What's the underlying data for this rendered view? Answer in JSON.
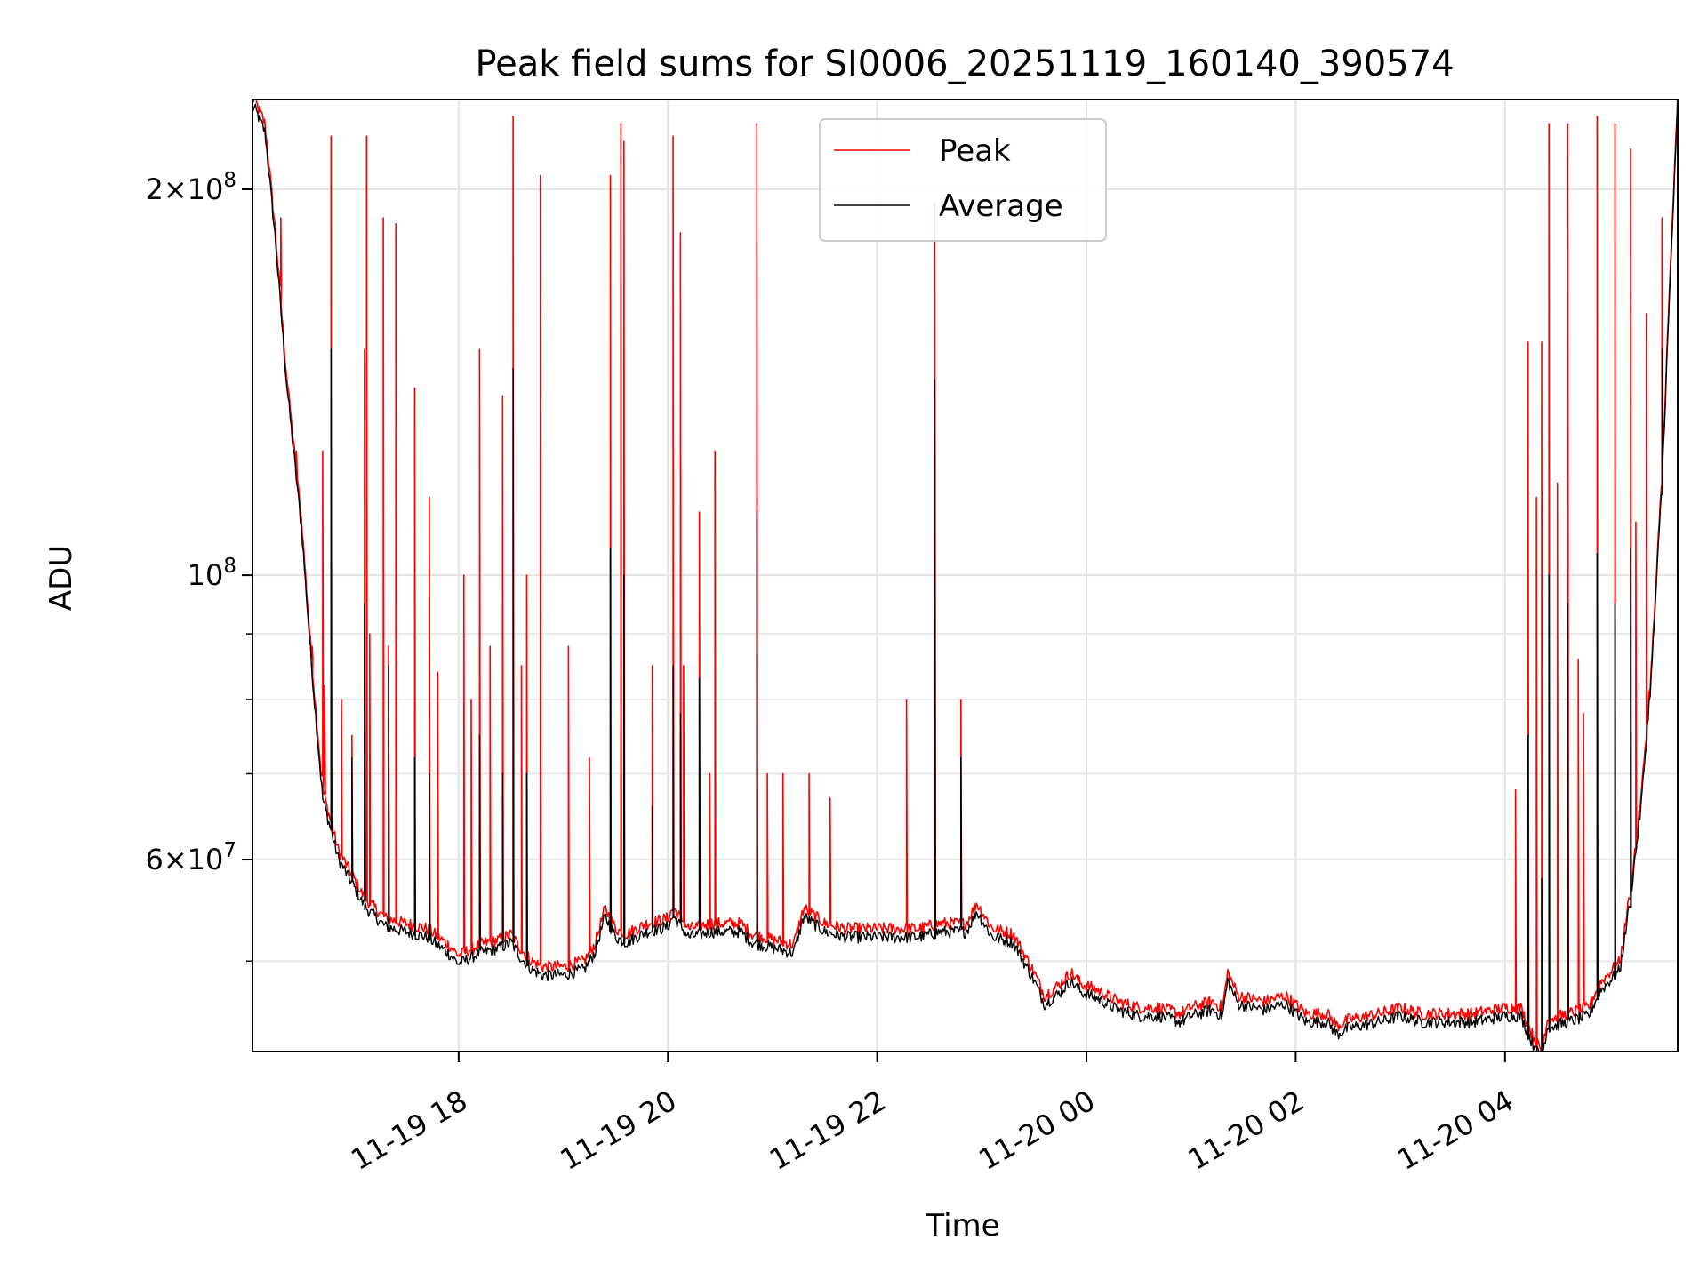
{
  "chart_data": {
    "type": "line",
    "title": "Peak field sums for SI0006_20251119_160140_390574",
    "xlabel": "Time",
    "ylabel": "ADU",
    "yscale": "log",
    "ylim": [
      42500000,
      235000000
    ],
    "xlim_hours": [
      16.03,
      29.65
    ],
    "x_unit": "hours since 2025-11-19 00:00",
    "grid": true,
    "legend_position": "top-center",
    "x_ticks": [
      {
        "value": 18,
        "label": "11-19 18"
      },
      {
        "value": 20,
        "label": "11-19 20"
      },
      {
        "value": 22,
        "label": "11-19 22"
      },
      {
        "value": 24,
        "label": "11-20 00"
      },
      {
        "value": 26,
        "label": "11-20 02"
      },
      {
        "value": 28,
        "label": "11-20 04"
      }
    ],
    "y_ticks": [
      {
        "value": 200000000,
        "mantissa": "2",
        "exp": "8"
      },
      {
        "value": 100000000,
        "mantissa": "",
        "exp": "8"
      },
      {
        "value": 60000000,
        "mantissa": "6",
        "exp": "7"
      }
    ],
    "y_minor_ticks": [
      50000000,
      70000000,
      80000000,
      90000000
    ],
    "series": [
      {
        "name": "Peak",
        "color": "#ff0000",
        "baseline": [
          [
            16.05,
            235000000
          ],
          [
            16.15,
            225000000
          ],
          [
            16.25,
            185000000
          ],
          [
            16.35,
            145000000
          ],
          [
            16.5,
            110000000
          ],
          [
            16.6,
            85000000
          ],
          [
            16.7,
            68000000
          ],
          [
            16.85,
            61000000
          ],
          [
            17.0,
            58000000
          ],
          [
            17.1,
            56000000
          ],
          [
            17.3,
            54000000
          ],
          [
            17.5,
            53500000
          ],
          [
            17.7,
            53000000
          ],
          [
            17.9,
            51500000
          ],
          [
            18.0,
            50500000
          ],
          [
            18.2,
            51500000
          ],
          [
            18.4,
            52000000
          ],
          [
            18.5,
            52500000
          ],
          [
            18.6,
            51000000
          ],
          [
            18.7,
            50000000
          ],
          [
            18.8,
            49500000
          ],
          [
            19.0,
            49500000
          ],
          [
            19.2,
            50000000
          ],
          [
            19.3,
            51500000
          ],
          [
            19.4,
            55000000
          ],
          [
            19.5,
            53000000
          ],
          [
            19.6,
            52500000
          ],
          [
            19.8,
            53500000
          ],
          [
            20.0,
            54000000
          ],
          [
            20.05,
            55000000
          ],
          [
            20.2,
            53000000
          ],
          [
            20.4,
            53500000
          ],
          [
            20.7,
            53500000
          ],
          [
            20.8,
            52500000
          ],
          [
            21.0,
            52000000
          ],
          [
            21.2,
            51500000
          ],
          [
            21.3,
            55000000
          ],
          [
            21.5,
            53500000
          ],
          [
            21.7,
            53000000
          ],
          [
            22.0,
            53000000
          ],
          [
            22.4,
            53000000
          ],
          [
            22.6,
            53500000
          ],
          [
            22.85,
            53500000
          ],
          [
            22.95,
            55500000
          ],
          [
            23.1,
            53000000
          ],
          [
            23.3,
            52500000
          ],
          [
            23.5,
            49000000
          ],
          [
            23.6,
            47000000
          ],
          [
            23.75,
            48000000
          ],
          [
            23.85,
            49000000
          ],
          [
            23.95,
            48000000
          ],
          [
            24.1,
            47500000
          ],
          [
            24.3,
            46500000
          ],
          [
            24.5,
            46000000
          ],
          [
            24.7,
            46000000
          ],
          [
            24.9,
            45500000
          ],
          [
            25.0,
            46000000
          ],
          [
            25.2,
            46500000
          ],
          [
            25.3,
            46000000
          ],
          [
            25.35,
            49000000
          ],
          [
            25.45,
            47000000
          ],
          [
            25.7,
            46500000
          ],
          [
            25.9,
            47000000
          ],
          [
            26.1,
            45500000
          ],
          [
            26.3,
            45500000
          ],
          [
            26.4,
            44500000
          ],
          [
            26.5,
            45000000
          ],
          [
            26.8,
            45500000
          ],
          [
            27.0,
            46000000
          ],
          [
            27.2,
            45500000
          ],
          [
            27.5,
            45500000
          ],
          [
            27.7,
            45500000
          ],
          [
            28.0,
            46000000
          ],
          [
            28.15,
            46000000
          ],
          [
            28.25,
            44000000
          ],
          [
            28.35,
            42500000
          ],
          [
            28.4,
            45000000
          ],
          [
            28.6,
            45500000
          ],
          [
            28.8,
            46000000
          ],
          [
            28.9,
            48000000
          ],
          [
            29.1,
            50000000
          ],
          [
            29.2,
            57000000
          ],
          [
            29.3,
            67000000
          ],
          [
            29.4,
            85000000
          ],
          [
            29.5,
            120000000
          ],
          [
            29.6,
            190000000
          ],
          [
            29.65,
            235000000
          ]
        ],
        "spikes": [
          [
            16.3,
            190000000
          ],
          [
            16.45,
            125000000
          ],
          [
            16.6,
            88000000
          ],
          [
            16.7,
            125000000
          ],
          [
            16.72,
            82000000
          ],
          [
            16.78,
            220000000
          ],
          [
            16.88,
            80000000
          ],
          [
            16.98,
            75000000
          ],
          [
            17.1,
            150000000
          ],
          [
            17.12,
            220000000
          ],
          [
            17.15,
            90000000
          ],
          [
            17.28,
            190000000
          ],
          [
            17.33,
            88000000
          ],
          [
            17.4,
            188000000
          ],
          [
            17.58,
            140000000
          ],
          [
            17.72,
            115000000
          ],
          [
            17.8,
            84000000
          ],
          [
            18.05,
            100000000
          ],
          [
            18.12,
            80000000
          ],
          [
            18.2,
            150000000
          ],
          [
            18.3,
            88000000
          ],
          [
            18.42,
            138000000
          ],
          [
            18.52,
            228000000
          ],
          [
            18.6,
            85000000
          ],
          [
            18.65,
            100000000
          ],
          [
            18.78,
            205000000
          ],
          [
            19.05,
            88000000
          ],
          [
            19.25,
            72000000
          ],
          [
            19.45,
            205000000
          ],
          [
            19.55,
            225000000
          ],
          [
            19.58,
            218000000
          ],
          [
            19.85,
            85000000
          ],
          [
            20.05,
            220000000
          ],
          [
            20.12,
            185000000
          ],
          [
            20.15,
            85000000
          ],
          [
            20.3,
            112000000
          ],
          [
            20.4,
            70000000
          ],
          [
            20.45,
            125000000
          ],
          [
            20.85,
            225000000
          ],
          [
            20.95,
            70000000
          ],
          [
            21.1,
            70000000
          ],
          [
            21.35,
            70000000
          ],
          [
            21.55,
            67000000
          ],
          [
            22.28,
            80000000
          ],
          [
            22.55,
            195000000
          ],
          [
            22.8,
            80000000
          ],
          [
            28.1,
            68000000
          ],
          [
            28.22,
            152000000
          ],
          [
            28.3,
            115000000
          ],
          [
            28.35,
            152000000
          ],
          [
            28.42,
            225000000
          ],
          [
            28.5,
            118000000
          ],
          [
            28.6,
            225000000
          ],
          [
            28.7,
            86000000
          ],
          [
            28.75,
            78000000
          ],
          [
            28.88,
            228000000
          ],
          [
            29.05,
            225000000
          ],
          [
            29.2,
            215000000
          ],
          [
            29.25,
            110000000
          ],
          [
            29.35,
            160000000
          ],
          [
            29.5,
            190000000
          ]
        ]
      },
      {
        "name": "Average",
        "color": "#000000",
        "offset_ratio": 0.985,
        "spikes": [
          [
            16.78,
            150000000
          ],
          [
            16.98,
            72000000
          ],
          [
            17.1,
            95000000
          ],
          [
            17.33,
            85000000
          ],
          [
            17.58,
            72000000
          ],
          [
            17.72,
            70000000
          ],
          [
            18.2,
            75000000
          ],
          [
            18.42,
            70000000
          ],
          [
            18.52,
            145000000
          ],
          [
            18.65,
            70000000
          ],
          [
            19.45,
            105000000
          ],
          [
            19.58,
            100000000
          ],
          [
            19.85,
            66000000
          ],
          [
            20.05,
            85000000
          ],
          [
            20.12,
            78000000
          ],
          [
            20.3,
            83000000
          ],
          [
            20.85,
            112000000
          ],
          [
            22.55,
            142000000
          ],
          [
            22.8,
            72000000
          ],
          [
            28.22,
            75000000
          ],
          [
            28.35,
            58000000
          ],
          [
            28.42,
            100000000
          ],
          [
            28.6,
            95000000
          ],
          [
            28.88,
            104000000
          ],
          [
            29.05,
            95000000
          ],
          [
            29.2,
            105000000
          ],
          [
            29.5,
            150000000
          ]
        ]
      }
    ]
  }
}
